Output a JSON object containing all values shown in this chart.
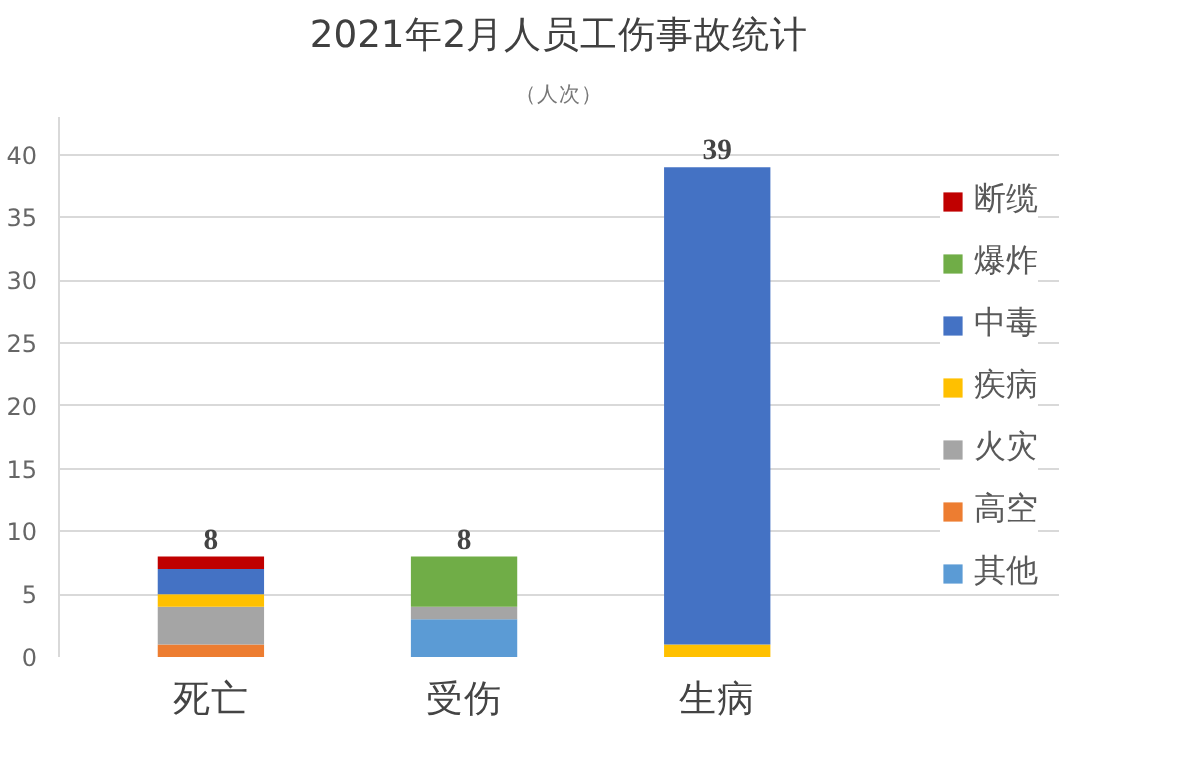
{
  "chart_data": {
    "type": "bar",
    "title": "2021年2月人员工伤事故统计",
    "subtitle": "（人次）",
    "categories": [
      "死亡",
      "受伤",
      "生病"
    ],
    "stacked": true,
    "series": [
      {
        "name": "其他",
        "color": "#5b9bd5",
        "values": [
          0,
          3,
          0
        ]
      },
      {
        "name": "高空",
        "color": "#ed7d31",
        "values": [
          1,
          0,
          0
        ]
      },
      {
        "name": "火灾",
        "color": "#a5a5a5",
        "values": [
          3,
          1,
          0
        ]
      },
      {
        "name": "疾病",
        "color": "#ffc000",
        "values": [
          1,
          0,
          1
        ]
      },
      {
        "name": "中毒",
        "color": "#4472c4",
        "values": [
          2,
          0,
          38
        ]
      },
      {
        "name": "爆炸",
        "color": "#70ad47",
        "values": [
          0,
          4,
          0
        ]
      },
      {
        "name": "断缆",
        "color": "#c00000",
        "values": [
          1,
          0,
          0
        ]
      }
    ],
    "totals": [
      "8",
      "8",
      "39"
    ],
    "ylim": [
      0,
      43
    ],
    "yticks": [
      0,
      5,
      10,
      15,
      20,
      25,
      30,
      35,
      40
    ],
    "grid": "y",
    "legend": "right"
  }
}
